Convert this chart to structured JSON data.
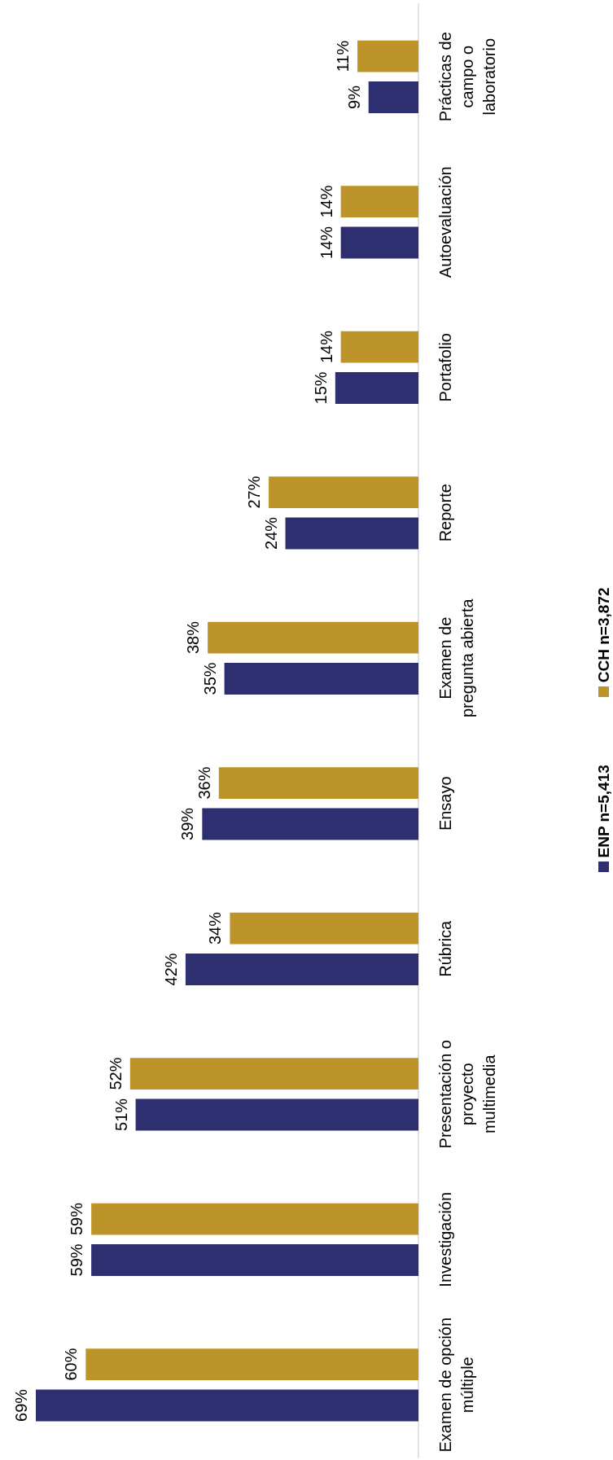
{
  "chart_data": {
    "type": "bar",
    "orientation": "horizontal",
    "legend": "right",
    "categories": [
      "Prácticas de\ncampo o\nlaboratorio",
      "Autoevaluación",
      "Portafolio",
      "Reporte",
      "Examen de\npregunta abierta",
      "Ensayo",
      "Rúbrica",
      "Presentación o\nproyecto\nmultimedia",
      "Investigación",
      "Examen de opción\nmúltiple"
    ],
    "series": [
      {
        "name": "ENP n=5,413",
        "color": "#2d2f70",
        "values": [
          9,
          14,
          15,
          24,
          35,
          39,
          42,
          51,
          59,
          69
        ],
        "value_labels": [
          "9%",
          "14%",
          "15%",
          "24%",
          "35%",
          "39%",
          "42%",
          "51%",
          "59%",
          "69%"
        ]
      },
      {
        "name": "CCH n=3,872",
        "color": "#bc942a",
        "values": [
          11,
          14,
          14,
          27,
          38,
          36,
          34,
          52,
          59,
          60
        ],
        "value_labels": [
          "11%",
          "14%",
          "14%",
          "27%",
          "38%",
          "36%",
          "34%",
          "52%",
          "59%",
          "60%"
        ]
      }
    ]
  }
}
